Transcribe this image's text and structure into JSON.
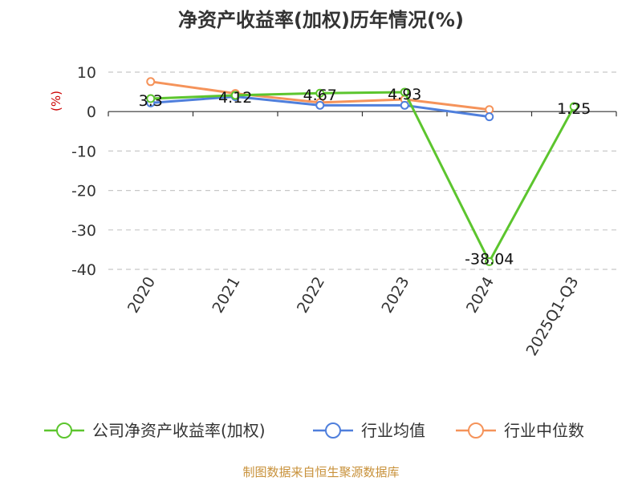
{
  "chart_data": {
    "type": "line",
    "title": "净资产收益率(加权)历年情况(%)",
    "ylabel": "(%)",
    "categories": [
      "2020",
      "2021",
      "2022",
      "2023",
      "2024",
      "2025Q1-Q3"
    ],
    "ylim": [
      -40,
      10
    ],
    "yticks": [
      10,
      0,
      -10,
      -20,
      -30,
      -40
    ],
    "grid": true,
    "legend_position": "bottom",
    "series": [
      {
        "name": "公司净资产收益率(加权)",
        "color": "#5cc52e",
        "values": [
          3.3,
          4.12,
          4.67,
          4.93,
          -38.04,
          1.25
        ],
        "labels": [
          "3.3",
          "4.12",
          "4.67",
          "4.93",
          "-38.04",
          "1.25"
        ]
      },
      {
        "name": "行业均值",
        "color": "#4f7fdc",
        "values": [
          2.2,
          3.8,
          1.6,
          1.6,
          -1.3,
          null
        ]
      },
      {
        "name": "行业中位数",
        "color": "#f5935a",
        "values": [
          7.6,
          4.6,
          2.3,
          3.1,
          0.5,
          null
        ]
      }
    ]
  },
  "source": "制图数据来自恒生聚源数据库"
}
